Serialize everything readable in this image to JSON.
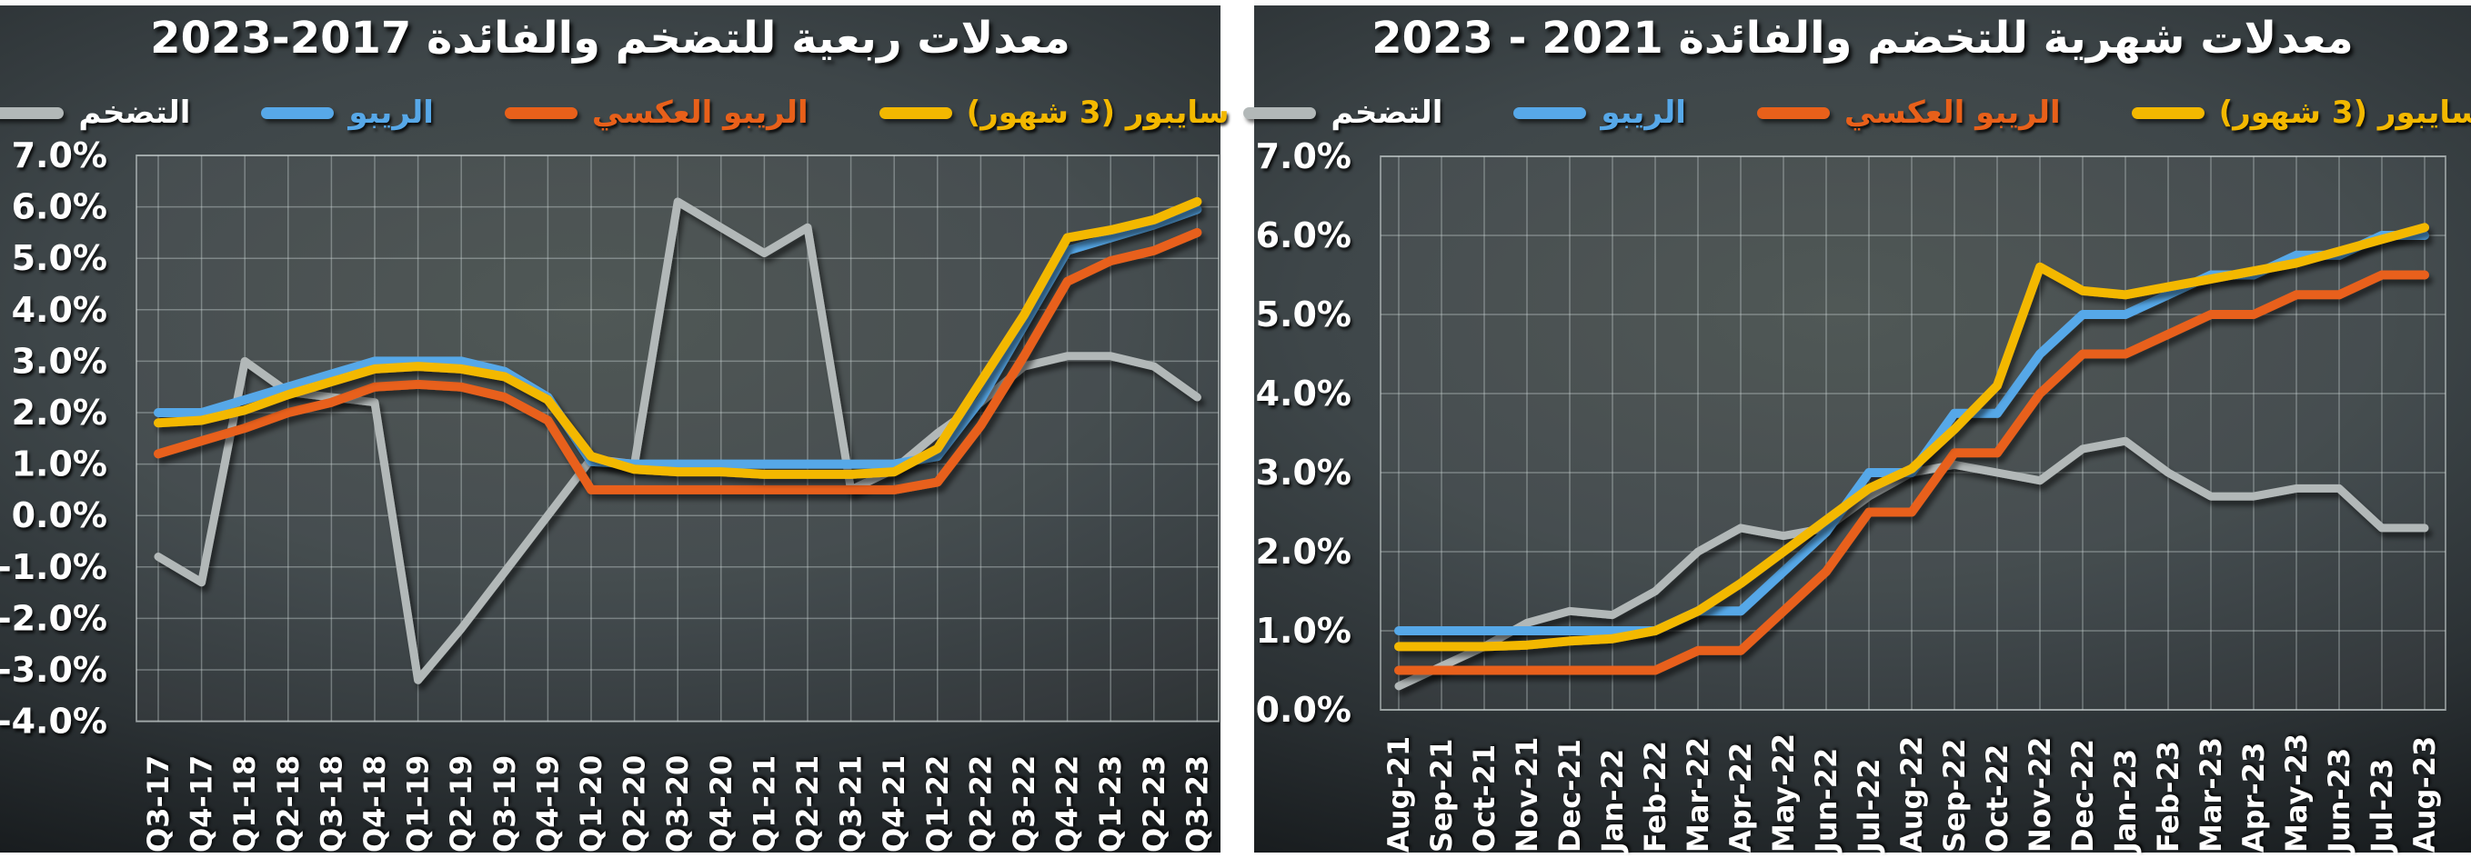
{
  "theme": {
    "page_background": "#ffffff",
    "panel_divider_color": "#ffffff",
    "panel_top_strip_color": "#fbfbfb",
    "panel_background_center": "#49514f",
    "panel_background_edge": "#101315",
    "plot_fill": "rgba(255,255,255,0.045)",
    "gridline_color": "rgba(205,214,214,0.40)",
    "plot_border_color": "rgba(205,214,214,0.55)",
    "axis_text_color": "#ffffff"
  },
  "chart_data": [
    {
      "type": "line",
      "title": "معدلات ربعية للتضخم والفائدة 2017-2023",
      "ylim": [
        -4,
        7
      ],
      "grid": true,
      "legend_position": "top",
      "y_tick_labels": [
        "7.0%",
        "6.0%",
        "5.0%",
        "4.0%",
        "3.0%",
        "2.0%",
        "1.0%",
        "0.0%",
        "-1.0%",
        "-2.0%",
        "-3.0%",
        "-4.0%"
      ],
      "categories": [
        "Q3-17",
        "Q4-17",
        "Q1-18",
        "Q2-18",
        "Q3-18",
        "Q4-18",
        "Q1-19",
        "Q2-19",
        "Q3-19",
        "Q4-19",
        "Q1-20",
        "Q2-20",
        "Q3-20",
        "Q4-20",
        "Q1-21",
        "Q2-21",
        "Q3-21",
        "Q4-21",
        "Q1-22",
        "Q2-22",
        "Q3-22",
        "Q4-22",
        "Q1-23",
        "Q2-23",
        "Q3-23"
      ],
      "series": [
        {
          "name": "التضخم",
          "color": "#b2b8b8",
          "label_color": "#ffffff",
          "width": 9,
          "values": [
            -0.8,
            -1.3,
            3.0,
            2.4,
            2.3,
            2.2,
            -3.2,
            -2.2,
            -1.1,
            0.0,
            1.1,
            1.0,
            6.1,
            5.6,
            5.1,
            5.6,
            0.5,
            0.9,
            1.6,
            2.2,
            2.9,
            3.1,
            3.1,
            2.9,
            2.3
          ]
        },
        {
          "name": "الريبو",
          "color": "#57a8e8",
          "label_color": "#57a8e8",
          "width": 10,
          "values": [
            2.0,
            2.0,
            2.25,
            2.5,
            2.75,
            3.0,
            3.0,
            3.0,
            2.8,
            2.3,
            1.05,
            1.0,
            1.0,
            1.0,
            1.0,
            1.0,
            1.0,
            1.0,
            1.15,
            2.25,
            3.7,
            5.15,
            5.4,
            5.65,
            5.95
          ]
        },
        {
          "name": "الريبو العكسي",
          "color": "#e8601a",
          "label_color": "#e8601a",
          "width": 10,
          "values": [
            1.2,
            1.45,
            1.7,
            2.0,
            2.2,
            2.5,
            2.55,
            2.5,
            2.3,
            1.85,
            0.5,
            0.5,
            0.5,
            0.5,
            0.5,
            0.5,
            0.5,
            0.5,
            0.65,
            1.75,
            3.1,
            4.55,
            4.95,
            5.15,
            5.5
          ]
        },
        {
          "name": "سايبور (3 شهور)",
          "color": "#f3b800",
          "label_color": "#f3b800",
          "width": 10,
          "values": [
            1.8,
            1.85,
            2.05,
            2.35,
            2.6,
            2.85,
            2.9,
            2.85,
            2.7,
            2.25,
            1.15,
            0.9,
            0.85,
            0.85,
            0.8,
            0.8,
            0.8,
            0.85,
            1.3,
            2.6,
            3.9,
            5.4,
            5.55,
            5.75,
            6.1
          ]
        }
      ]
    },
    {
      "type": "line",
      "title": "معدلات شهرية للتخضم والفائدة 2021 - 2023",
      "ylim": [
        0,
        7
      ],
      "grid": true,
      "legend_position": "top",
      "y_tick_labels": [
        "7.0%",
        "6.0%",
        "5.0%",
        "4.0%",
        "3.0%",
        "2.0%",
        "1.0%",
        "0.0%"
      ],
      "categories": [
        "Aug-21",
        "Sep-21",
        "Oct-21",
        "Nov-21",
        "Dec-21",
        "Jan-22",
        "Feb-22",
        "Mar-22",
        "Apr-22",
        "May-22",
        "Jun-22",
        "Jul-22",
        "Aug-22",
        "Sep-22",
        "Oct-22",
        "Nov-22",
        "Dec-22",
        "Jan-23",
        "Feb-23",
        "Mar-23",
        "Apr-23",
        "May-23",
        "Jun-23",
        "Jul-23",
        "Aug-23"
      ],
      "series": [
        {
          "name": "التضخم",
          "color": "#b2b8b8",
          "label_color": "#ffffff",
          "width": 9,
          "values": [
            0.3,
            0.55,
            0.8,
            1.1,
            1.25,
            1.2,
            1.5,
            2.0,
            2.3,
            2.2,
            2.3,
            2.7,
            3.0,
            3.1,
            3.0,
            2.9,
            3.3,
            3.4,
            3.0,
            2.7,
            2.7,
            2.8,
            2.8,
            2.3,
            2.3
          ]
        },
        {
          "name": "الريبو",
          "color": "#57a8e8",
          "label_color": "#57a8e8",
          "width": 10,
          "values": [
            1.0,
            1.0,
            1.0,
            1.0,
            1.0,
            1.0,
            1.0,
            1.25,
            1.25,
            1.75,
            2.25,
            3.0,
            3.0,
            3.75,
            3.75,
            4.5,
            5.0,
            5.0,
            5.25,
            5.5,
            5.5,
            5.75,
            5.75,
            6.0,
            6.0
          ]
        },
        {
          "name": "الريبو العكسي",
          "color": "#e8601a",
          "label_color": "#e8601a",
          "width": 10,
          "values": [
            0.5,
            0.5,
            0.5,
            0.5,
            0.5,
            0.5,
            0.5,
            0.75,
            0.75,
            1.25,
            1.75,
            2.5,
            2.5,
            3.25,
            3.25,
            4.0,
            4.5,
            4.5,
            4.75,
            5.0,
            5.0,
            5.25,
            5.25,
            5.5,
            5.5
          ]
        },
        {
          "name": "سايبور (3 شهور)",
          "color": "#f3b800",
          "label_color": "#f3b800",
          "width": 10,
          "values": [
            0.8,
            0.8,
            0.8,
            0.82,
            0.87,
            0.9,
            1.0,
            1.25,
            1.6,
            2.0,
            2.4,
            2.8,
            3.05,
            3.55,
            4.1,
            5.6,
            5.3,
            5.25,
            5.35,
            5.45,
            5.55,
            5.65,
            5.8,
            5.95,
            6.1
          ]
        }
      ]
    }
  ]
}
